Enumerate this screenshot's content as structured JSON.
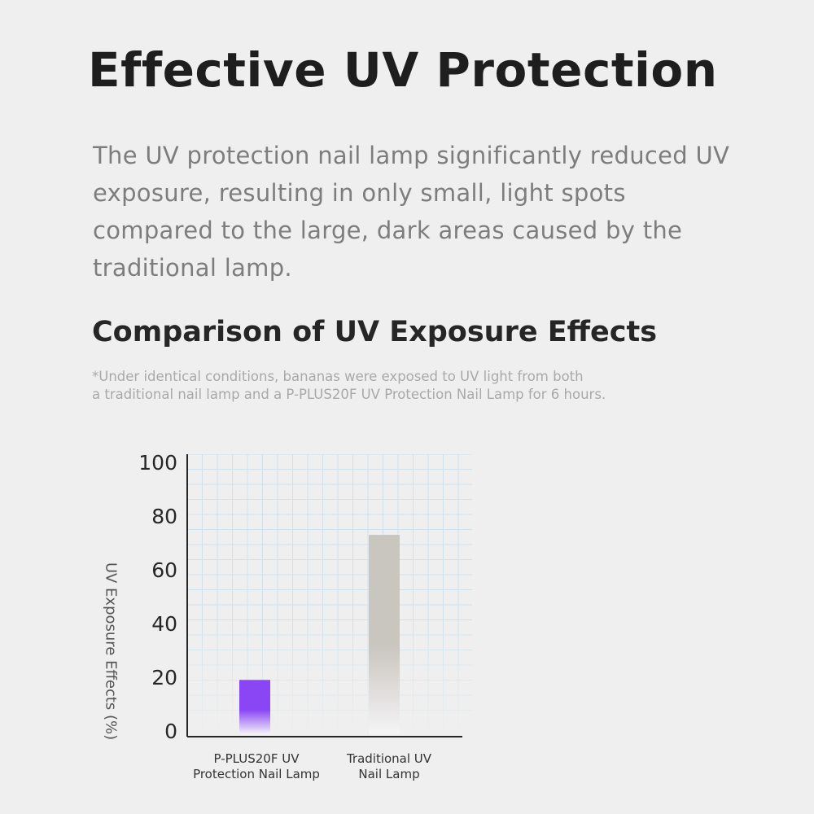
{
  "header": {
    "title": "Effective UV Protection",
    "description": "The UV protection nail lamp significantly reduced UV exposure, resulting in only small, light spots compared to the large, dark areas caused by the traditional lamp."
  },
  "chart_section": {
    "heading": "Comparison of UV Exposure Effects",
    "note_line1": "*Under identical conditions, bananas were exposed to UV light from both",
    "note_line2": "a traditional nail lamp and a P-PLUS20F UV Protection Nail Lamp for 6 hours."
  },
  "chart_data": {
    "type": "bar",
    "title": "",
    "xlabel": "",
    "ylabel": "UV Exposure Effects (%)",
    "ylim": [
      0,
      100
    ],
    "yticks": [
      0,
      20,
      40,
      60,
      80,
      100
    ],
    "grid": true,
    "categories": [
      {
        "line1": "P-PLUS20F UV",
        "line2": "Protection Nail Lamp"
      },
      {
        "line1": "Traditional UV",
        "line2": "Nail Lamp"
      }
    ],
    "values": [
      19,
      73
    ],
    "colors": [
      "#8a45f5",
      "#c9c5bf"
    ],
    "fade_color": "#f5f4f6",
    "axis_color": "#262626",
    "grid_color": "#cfe2ec"
  }
}
